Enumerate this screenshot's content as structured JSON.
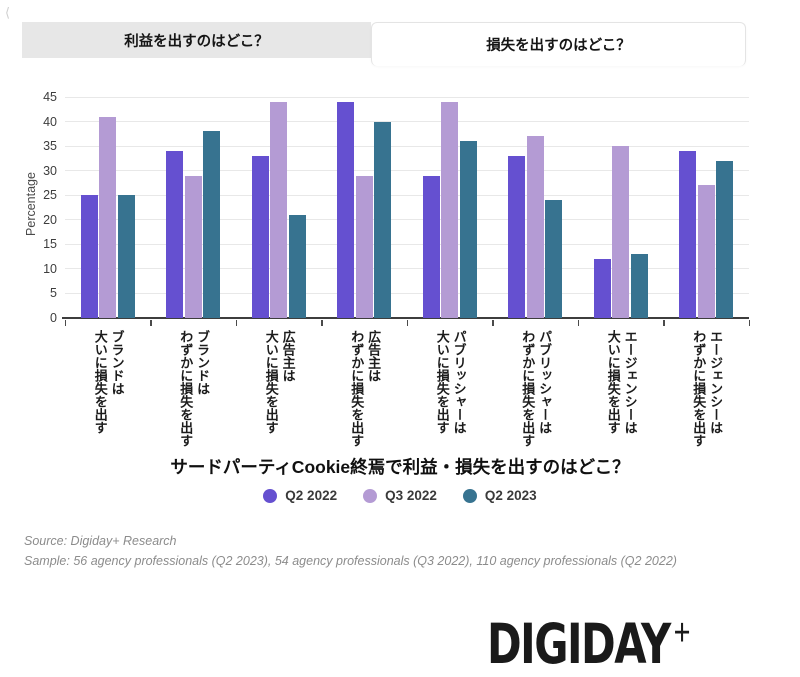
{
  "icons": {
    "back": "⟨"
  },
  "tabs": {
    "items": [
      {
        "label": "利益を出すのはどこ？",
        "active": false
      },
      {
        "label": "損失を出すのはどこ？",
        "active": true
      }
    ]
  },
  "chart_data": {
    "type": "bar",
    "title": "サードパーティCookie終焉で利益・損失を出すのはどこ？",
    "ylabel": "Percentage",
    "xlabel": "",
    "ylim": [
      0,
      45
    ],
    "ytick_step": 5,
    "grid": true,
    "legend_position": "bottom",
    "axis_color": "#3d3d3d",
    "grid_color": "#e8e8e8",
    "categories": [
      "ブランドは\n大いに損失を出す",
      "ブランドは\nわずかに損失を出す",
      "広告主は\n大いに損失を出す",
      "広告主は\nわずかに損失を出す",
      "パブリッシャーは\n大いに損失を出す",
      "パブリッシャーは\nわずかに損失を出す",
      "エージェンシーは\n大いに損失を出す",
      "エージェンシーは\nわずかに損失を出す"
    ],
    "series": [
      {
        "name": "Q2 2022",
        "color": "#6550d0",
        "values": [
          25,
          34,
          33,
          44,
          29,
          33,
          12,
          34
        ]
      },
      {
        "name": "Q3 2022",
        "color": "#b49bd4",
        "values": [
          41,
          29,
          44,
          29,
          44,
          37,
          35,
          27
        ]
      },
      {
        "name": "Q2 2023",
        "color": "#377390",
        "values": [
          25,
          38,
          21,
          40,
          36,
          24,
          13,
          32
        ]
      }
    ]
  },
  "footer": {
    "source": "Source: Digiday+ Research",
    "sample": "Sample: 56 agency professionals (Q2 2023), 54 agency professionals (Q3 2022), 110 agency professionals (Q2 2022)"
  },
  "logo": {
    "text": "DIGIDAY",
    "plus": "+"
  }
}
